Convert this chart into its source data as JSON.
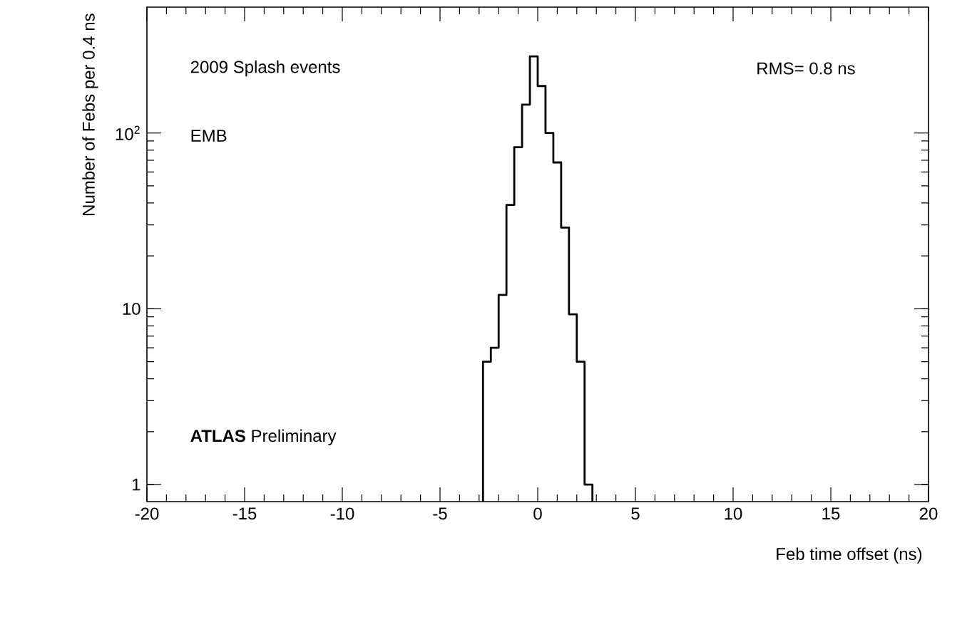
{
  "chart_data": {
    "type": "histogram",
    "color": "#000000",
    "log": true,
    "bins": [
      -2.8,
      -2.4,
      -2.0,
      -1.6,
      -1.2,
      -0.8,
      -0.4,
      0.0,
      0.4,
      0.8,
      1.2,
      1.6,
      2.0,
      2.4,
      2.8
    ],
    "values": [
      5,
      6,
      12,
      39,
      83,
      145,
      273,
      185,
      100,
      68,
      29,
      9.3,
      5,
      1
    ],
    "xlim": [
      -20,
      20
    ],
    "ylim": [
      0.8,
      520
    ],
    "xticks": [
      -20,
      -15,
      -10,
      -5,
      0,
      5,
      10,
      15,
      20
    ],
    "yticks": [
      1,
      10,
      {
        "value": 100,
        "label": "10$^{2}$"
      }
    ],
    "xlabel": "Feb time offset (ns)",
    "ylabel": "Number of Febs per 0.4 ns",
    "annotations": [
      "2009 Splash events",
      "RMS= 0.8 ns",
      "EMB",
      "**ATLAS** Preliminary"
    ]
  }
}
